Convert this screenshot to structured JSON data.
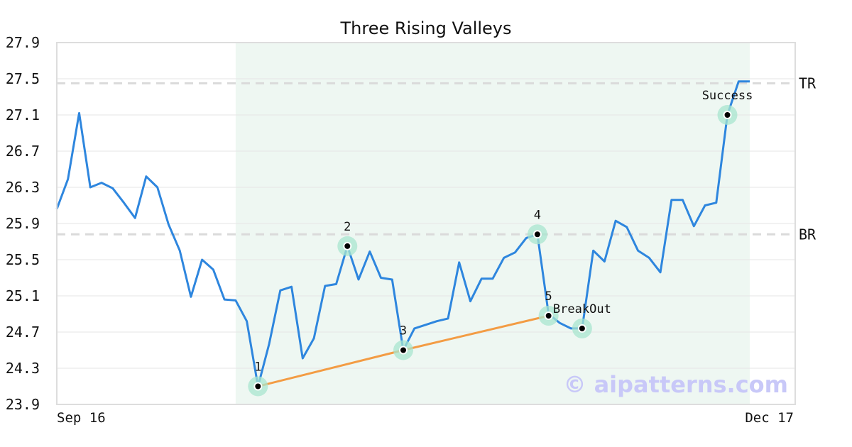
{
  "chart_data": {
    "type": "line",
    "title": "Three Rising Valleys",
    "ylim": [
      23.9,
      27.9
    ],
    "y_ticks": [
      "27.9",
      "27.5",
      "27.1",
      "26.7",
      "26.3",
      "25.9",
      "25.5",
      "25.1",
      "24.7",
      "24.3",
      "23.9"
    ],
    "x_tick_labels": [
      "Sep 16",
      "Dec 17"
    ],
    "grid": true,
    "series": [
      {
        "color": "#2e86de",
        "values": [
          26.06,
          26.39,
          27.12,
          26.3,
          26.35,
          26.29,
          26.13,
          25.96,
          26.42,
          26.3,
          25.89,
          25.6,
          25.09,
          25.5,
          25.39,
          25.06,
          25.05,
          24.82,
          24.1,
          24.57,
          25.16,
          25.2,
          24.41,
          24.63,
          25.21,
          25.23,
          25.65,
          25.28,
          25.59,
          25.3,
          25.28,
          24.5,
          24.74,
          24.78,
          24.82,
          24.85,
          25.47,
          25.04,
          25.29,
          25.29,
          25.52,
          25.58,
          25.74,
          25.78,
          24.9,
          24.8,
          24.74,
          24.74,
          25.6,
          25.48,
          25.93,
          25.86,
          25.6,
          25.52,
          25.36,
          26.16,
          26.16,
          25.87,
          26.1,
          26.13,
          27.1,
          27.47,
          27.47
        ]
      },
      {
        "color": "#f39c44",
        "x_indices": [
          18,
          31,
          44
        ],
        "values": [
          24.1,
          24.5,
          24.88
        ]
      }
    ],
    "pattern_points": [
      {
        "label": "1",
        "index": 18,
        "value": 24.1
      },
      {
        "label": "2",
        "index": 26,
        "value": 25.65
      },
      {
        "label": "3",
        "index": 31,
        "value": 24.5
      },
      {
        "label": "4",
        "index": 43,
        "value": 25.78
      },
      {
        "label": "5",
        "index": 44,
        "value": 24.88
      },
      {
        "label": "BreakOut",
        "index": 47,
        "value": 24.74
      },
      {
        "label": "Success",
        "index": 60,
        "value": 27.1
      }
    ],
    "point_color": "#a8e6cf",
    "shaded_region": {
      "from_index": 16,
      "to_index": 62,
      "color": "#eef7f2"
    },
    "hlines": [
      {
        "label": "TR",
        "value": 27.45
      },
      {
        "label": "BR",
        "value": 25.78
      }
    ],
    "watermark": "© aipatterns.com"
  }
}
